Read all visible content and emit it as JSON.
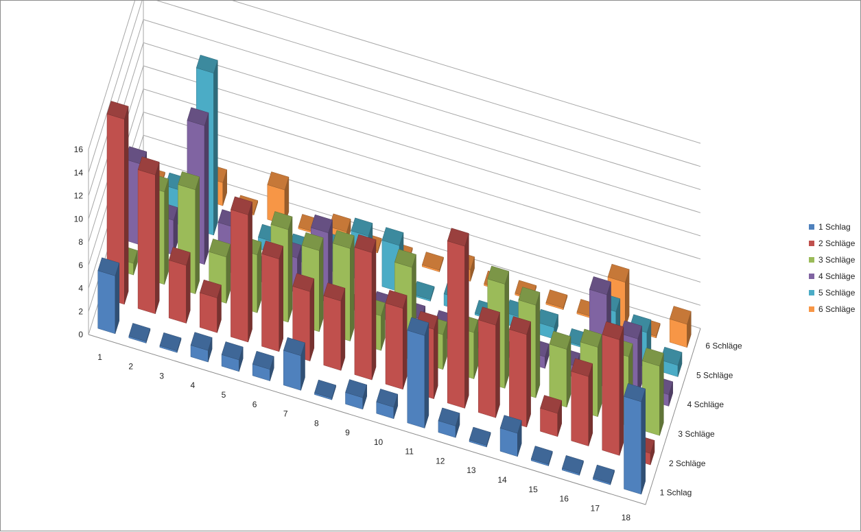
{
  "chart_data": {
    "type": "bar",
    "title": "",
    "xlabel": "",
    "ylabel": "",
    "ylim": [
      0,
      16
    ],
    "yticks": [
      "0",
      "2",
      "4",
      "6",
      "8",
      "10",
      "12",
      "14",
      "16"
    ],
    "categories": [
      "1",
      "2",
      "3",
      "4",
      "5",
      "6",
      "7",
      "8",
      "9",
      "10",
      "11",
      "12",
      "13",
      "14",
      "15",
      "16",
      "17",
      "18"
    ],
    "depth_labels": [
      "1 Schlag",
      "2 Schläge",
      "3 Schläge",
      "4 Schläge",
      "5 Schläge",
      "6 Schläge"
    ],
    "gridlines": true,
    "legend_position": "right",
    "series": [
      {
        "name": "1 Schlag",
        "color": "#4f81bd",
        "values": [
          5,
          0,
          0,
          1,
          1,
          1,
          3,
          0,
          1,
          1,
          8,
          1,
          0,
          2,
          0,
          0,
          0,
          8
        ]
      },
      {
        "name": "2 Schläge",
        "color": "#c0504d",
        "values": [
          16,
          12,
          5,
          3,
          11,
          8,
          6,
          6,
          11,
          7,
          6,
          14,
          8,
          8,
          2,
          6,
          10,
          1
        ]
      },
      {
        "name": "3 Schläge",
        "color": "#9bbb59",
        "values": [
          1,
          8,
          9,
          4,
          5,
          8,
          7,
          8,
          3,
          8,
          3,
          4,
          9,
          8,
          5,
          6,
          6,
          6
        ]
      },
      {
        "name": "4 Schläge",
        "color": "#8064a2",
        "values": [
          7,
          3,
          12,
          4,
          1,
          3,
          6,
          0,
          1,
          1,
          1,
          0,
          0,
          1,
          1,
          8,
          5,
          1
        ]
      },
      {
        "name": "5 Schläge",
        "color": "#4bacc6",
        "values": [
          0,
          3,
          14,
          1,
          1,
          1,
          2,
          4,
          4,
          0,
          1,
          0,
          1,
          1,
          0,
          4,
          3,
          1
        ]
      },
      {
        "name": "6 Schläge",
        "color": "#f79646",
        "values": [
          0,
          0,
          2,
          0,
          3,
          0,
          1,
          0,
          0,
          0,
          1,
          0,
          0,
          0,
          0,
          4,
          0,
          2
        ]
      }
    ]
  }
}
